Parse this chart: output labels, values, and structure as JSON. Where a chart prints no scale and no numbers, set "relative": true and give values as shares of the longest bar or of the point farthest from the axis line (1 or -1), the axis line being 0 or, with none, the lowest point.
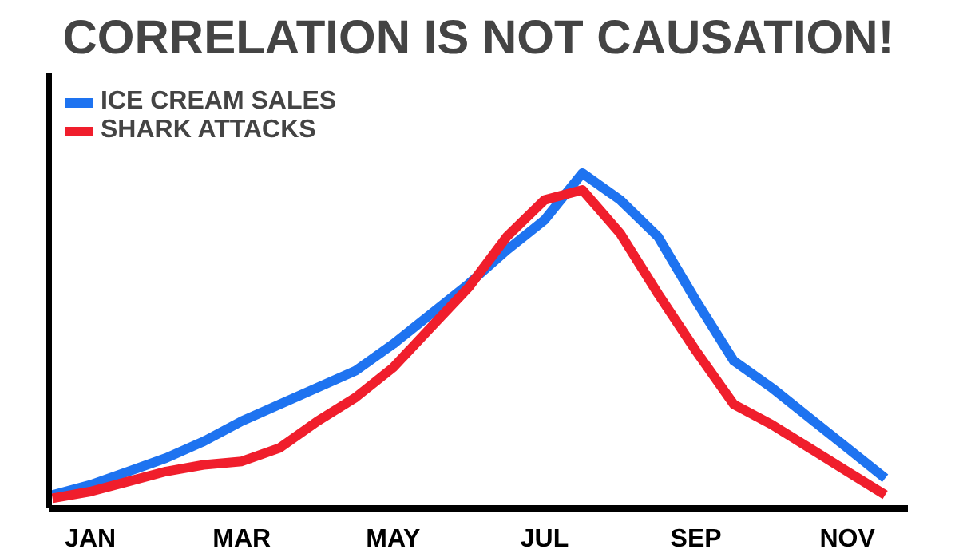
{
  "chart_data": {
    "type": "line",
    "title": "CORRELATION IS NOT CAUSATION!",
    "relative": true,
    "categories": [
      null,
      "JAN",
      null,
      null,
      null,
      "MAR",
      null,
      null,
      null,
      "MAY",
      null,
      null,
      null,
      "JUL",
      null,
      null,
      null,
      "SEP",
      null,
      null,
      null,
      "NOV",
      null
    ],
    "series": [
      {
        "name": "ICE CREAM SALES",
        "color": "#1e73f0",
        "values": [
          0.04,
          0.07,
          0.11,
          0.15,
          0.2,
          0.26,
          0.31,
          0.36,
          0.41,
          0.49,
          0.58,
          0.67,
          0.77,
          0.86,
          1.0,
          0.92,
          0.81,
          0.62,
          0.44,
          0.36,
          0.27,
          0.18,
          0.09
        ]
      },
      {
        "name": "SHARK ATTACKS",
        "color": "#f01e2c",
        "values": [
          0.03,
          0.05,
          0.08,
          0.11,
          0.13,
          0.14,
          0.18,
          0.26,
          0.33,
          0.42,
          0.54,
          0.66,
          0.81,
          0.92,
          0.95,
          0.82,
          0.64,
          0.47,
          0.31,
          0.25,
          0.18,
          0.11,
          0.04
        ]
      }
    ],
    "legend": "top left",
    "grid": false,
    "marker": "none",
    "line_style": "solid"
  }
}
